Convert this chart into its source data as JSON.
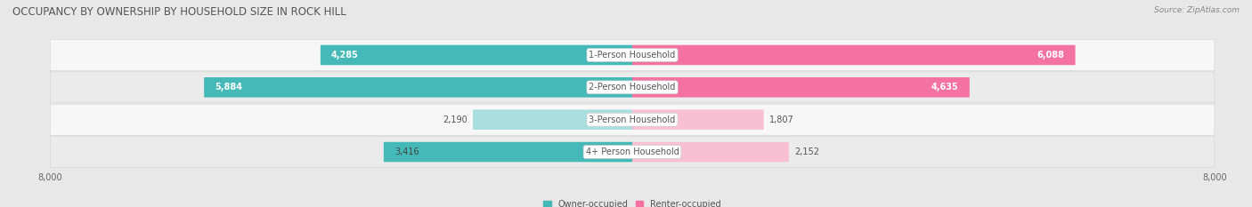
{
  "title": "OCCUPANCY BY OWNERSHIP BY HOUSEHOLD SIZE IN ROCK HILL",
  "source": "Source: ZipAtlas.com",
  "categories": [
    "1-Person Household",
    "2-Person Household",
    "3-Person Household",
    "4+ Person Household"
  ],
  "owner_values": [
    4285,
    5884,
    2190,
    3416
  ],
  "renter_values": [
    6088,
    4635,
    1807,
    2152
  ],
  "max_val": 8000,
  "owner_color": "#45b8b8",
  "owner_color_light": "#a8dede",
  "renter_color": "#f472a0",
  "renter_color_light": "#f9c0d4",
  "bg_color": "#e8e8e8",
  "row_colors": [
    "#f7f7f7",
    "#ebebeb"
  ],
  "title_fontsize": 8.5,
  "label_fontsize": 7,
  "value_fontsize": 7,
  "tick_fontsize": 7,
  "legend_fontsize": 7,
  "source_fontsize": 6.5
}
